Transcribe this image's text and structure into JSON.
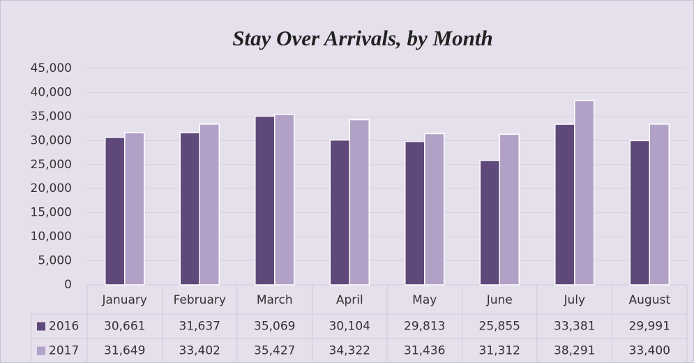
{
  "chart_data": {
    "type": "bar",
    "title": "Stay Over Arrivals, by Month",
    "categories": [
      "January",
      "February",
      "March",
      "April",
      "May",
      "June",
      "July",
      "August"
    ],
    "series": [
      {
        "name": "2016",
        "color": "#5f497a",
        "values": [
          30661,
          31637,
          35069,
          30104,
          29813,
          25855,
          33381,
          29991
        ],
        "value_labels": [
          "30,661",
          "31,637",
          "35,069",
          "30,104",
          "29,813",
          "25,855",
          "33,381",
          "29,991"
        ]
      },
      {
        "name": "2017",
        "color": "#b2a1c7",
        "values": [
          31649,
          33402,
          35427,
          34322,
          31436,
          31312,
          38291,
          33400
        ],
        "value_labels": [
          "31,649",
          "33,402",
          "35,427",
          "34,322",
          "31,436",
          "31,312",
          "38,291",
          "33,400"
        ]
      }
    ],
    "ylim": [
      0,
      45000
    ],
    "yticks": [
      0,
      {
        "value": 5000,
        "label": "5,000"
      },
      {
        "value": 10000,
        "label": "10,000"
      },
      {
        "value": 15000,
        "label": "15,000"
      },
      {
        "value": 20000,
        "label": "20,000"
      },
      {
        "value": 25000,
        "label": "25,000"
      },
      {
        "value": 30000,
        "label": "30,000"
      },
      {
        "value": 35000,
        "label": "35,000"
      },
      {
        "value": 40000,
        "label": "40,000"
      },
      {
        "value": 45000,
        "label": "45,000"
      }
    ],
    "grid": true
  }
}
